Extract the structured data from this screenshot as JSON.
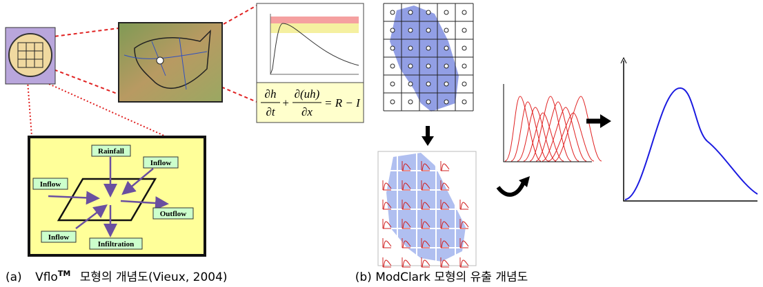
{
  "panel_a": {
    "equation": {
      "dh": "∂h",
      "dt": "∂t",
      "plus": "+",
      "duh": "∂(uh)",
      "dx": "∂x",
      "rhs": "= R − I"
    },
    "flow_labels": {
      "rainfall": "Rainfall",
      "inflow_top": "Inflow",
      "inflow_left": "Inflow",
      "outflow": "Outflow",
      "inflow_bottom": "Inflow",
      "infiltration": "Infiltration"
    },
    "caption": {
      "label": "(a)",
      "model": "Vflo",
      "superscript": "TM",
      "rest": "모형의 개념도(Vieux, 2004)"
    }
  },
  "panel_b": {
    "caption": "(b) ModClark 모형의 유출 개념도"
  }
}
